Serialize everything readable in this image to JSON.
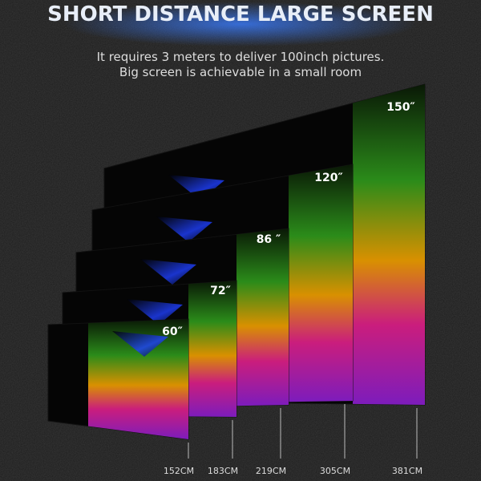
{
  "header": {
    "title": "SHORT DISTANCE  LARGE SCREEN",
    "subtitle": [
      "It requires 3 meters to deliver 100inch pictures.",
      "Big screen is achievable in a small room"
    ]
  },
  "screens": [
    {
      "size": "150″",
      "distance": "381CM"
    },
    {
      "size": "120″",
      "distance": "305CM"
    },
    {
      "size": "86 ″",
      "distance": "219CM"
    },
    {
      "size": "72″",
      "distance": "183CM"
    },
    {
      "size": "60″",
      "distance": "152CM"
    }
  ]
}
